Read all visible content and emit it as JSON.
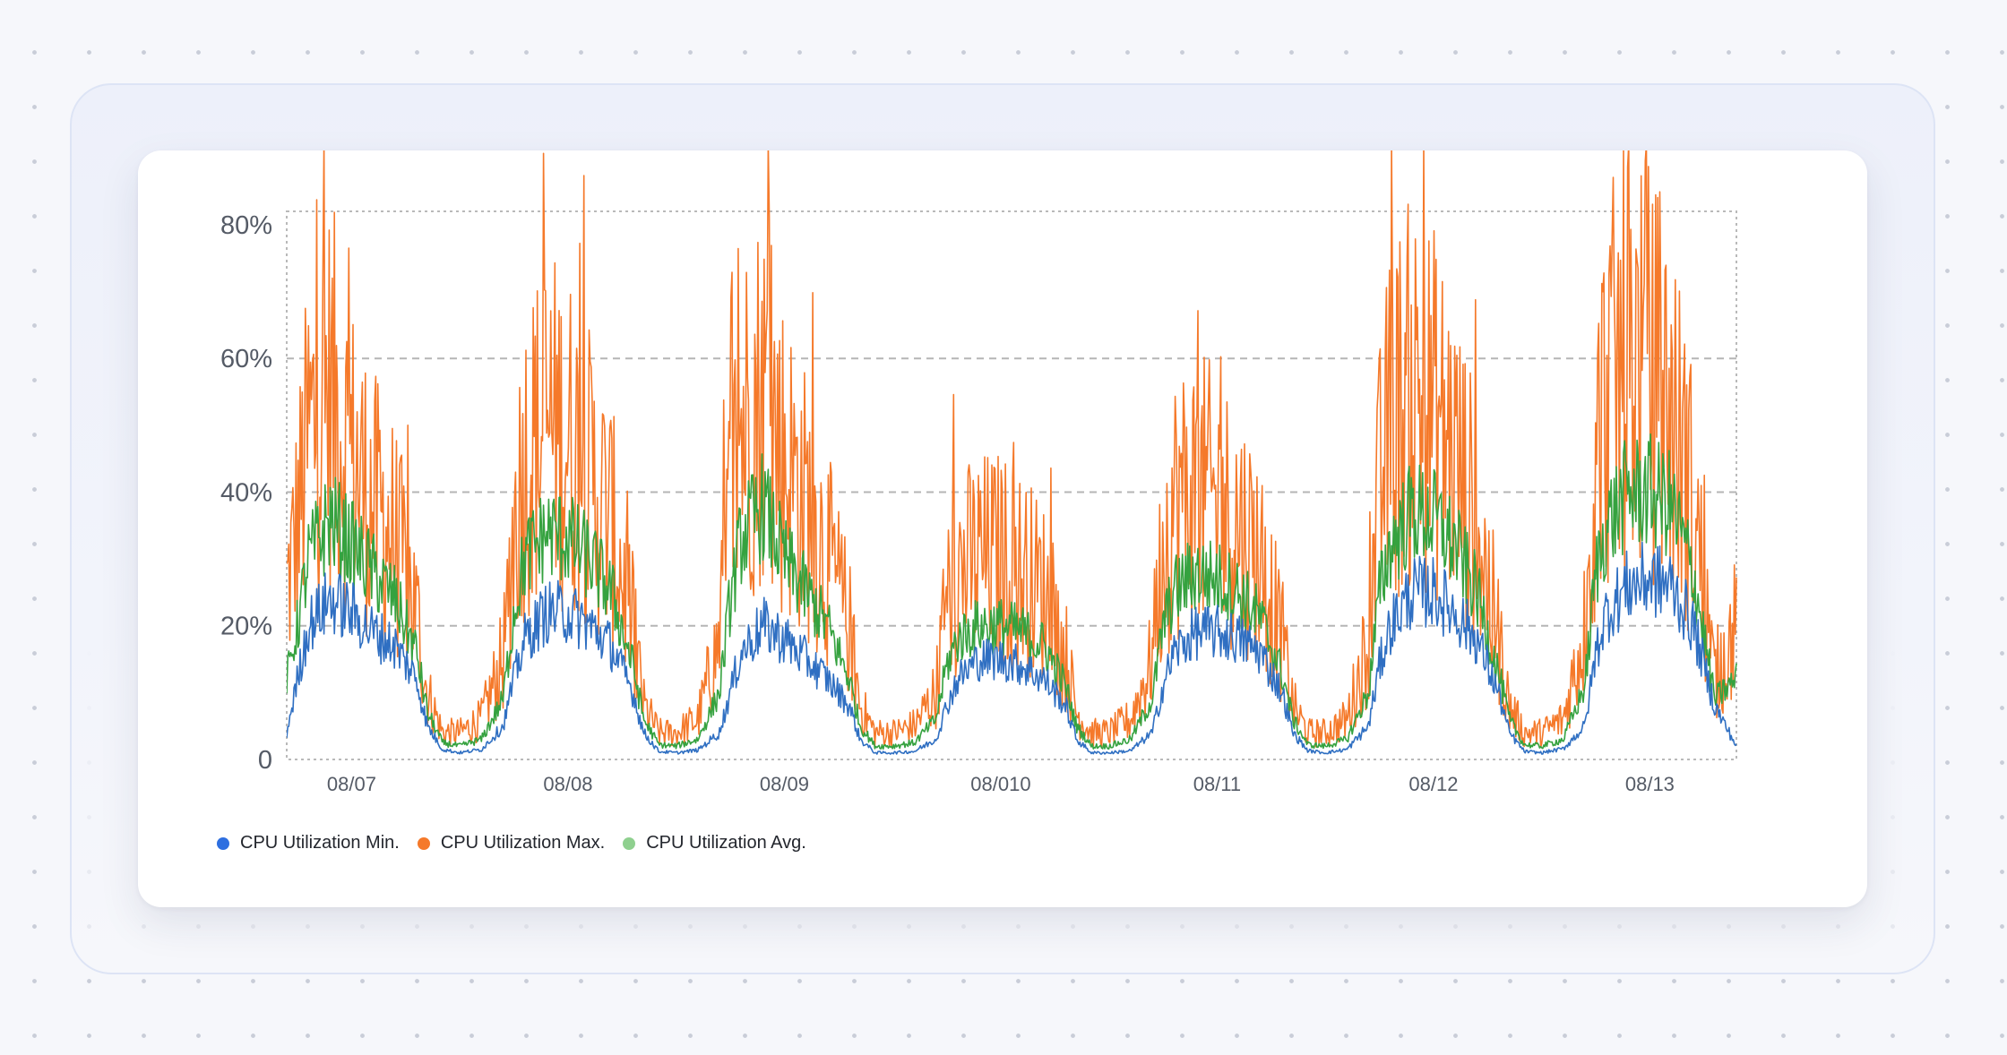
{
  "chart_data": {
    "type": "line",
    "title": "",
    "xlabel": "",
    "ylabel": "",
    "ylim": [
      0,
      82
    ],
    "y_ticks": [
      0,
      20,
      40,
      60,
      80
    ],
    "y_tick_labels": [
      "0",
      "20%",
      "40%",
      "60%",
      "80%"
    ],
    "x_range": [
      0,
      6.7
    ],
    "x_ticks": [
      0.3,
      1.3,
      2.3,
      3.3,
      4.3,
      5.3,
      6.3
    ],
    "x_tick_labels": [
      "08/07",
      "08/08",
      "08/09",
      "08/010",
      "08/11",
      "08/12",
      "08/13"
    ],
    "grid": true,
    "legend_position": "bottom-left",
    "series": [
      {
        "name": "CPU Utilization Min.",
        "color": "#2f6fc2",
        "x": [
          0,
          0.05,
          0.1,
          0.2,
          0.3,
          0.4,
          0.5,
          0.6,
          0.65,
          0.72,
          0.8,
          0.9,
          1.0,
          1.05,
          1.1,
          1.2,
          1.3,
          1.4,
          1.5,
          1.6,
          1.65,
          1.72,
          1.8,
          1.9,
          2.0,
          2.05,
          2.1,
          2.2,
          2.3,
          2.4,
          2.5,
          2.6,
          2.65,
          2.72,
          2.8,
          2.9,
          3.0,
          3.05,
          3.1,
          3.2,
          3.3,
          3.4,
          3.5,
          3.6,
          3.65,
          3.72,
          3.8,
          3.9,
          4.0,
          4.05,
          4.1,
          4.2,
          4.3,
          4.4,
          4.5,
          4.6,
          4.65,
          4.72,
          4.8,
          4.9,
          5.0,
          5.05,
          5.1,
          5.2,
          5.3,
          5.4,
          5.5,
          5.6,
          5.65,
          5.72,
          5.8,
          5.9,
          6.0,
          6.05,
          6.1,
          6.2,
          6.3,
          6.4,
          6.5,
          6.6,
          6.7
        ],
        "values": [
          4,
          12,
          20,
          24,
          22,
          19,
          17,
          12,
          5,
          1.5,
          1,
          1.5,
          5,
          12,
          18,
          22,
          22,
          20,
          17,
          10,
          4,
          1.2,
          1,
          1.4,
          4,
          10,
          16,
          20,
          18,
          15,
          12,
          8,
          3,
          1,
          1,
          1.2,
          3,
          8,
          12,
          15,
          15,
          14,
          12,
          8,
          3,
          1,
          1,
          1.3,
          4,
          11,
          16,
          19,
          19,
          18,
          16,
          10,
          4,
          1.3,
          1,
          1.5,
          5,
          14,
          20,
          25,
          25,
          22,
          18,
          10,
          4,
          1.2,
          1,
          1.6,
          5,
          16,
          22,
          26,
          27,
          26,
          20,
          8,
          2
        ]
      },
      {
        "name": "CPU Utilization Max.",
        "color": "#f5792a",
        "x": [
          0,
          0.05,
          0.1,
          0.2,
          0.3,
          0.4,
          0.5,
          0.6,
          0.65,
          0.72,
          0.8,
          0.9,
          1.0,
          1.05,
          1.1,
          1.2,
          1.3,
          1.4,
          1.5,
          1.6,
          1.65,
          1.72,
          1.8,
          1.9,
          2.0,
          2.05,
          2.1,
          2.2,
          2.3,
          2.4,
          2.5,
          2.6,
          2.65,
          2.72,
          2.8,
          2.9,
          3.0,
          3.05,
          3.1,
          3.2,
          3.3,
          3.4,
          3.5,
          3.6,
          3.65,
          3.72,
          3.8,
          3.9,
          4.0,
          4.05,
          4.1,
          4.2,
          4.3,
          4.4,
          4.5,
          4.6,
          4.65,
          4.72,
          4.8,
          4.9,
          5.0,
          5.05,
          5.1,
          5.2,
          5.3,
          5.4,
          5.5,
          5.6,
          5.65,
          5.72,
          5.8,
          5.9,
          6.0,
          6.05,
          6.1,
          6.2,
          6.3,
          6.4,
          6.5,
          6.6,
          6.7
        ],
        "values": [
          25,
          35,
          48,
          55,
          45,
          38,
          33,
          22,
          10,
          4,
          4,
          6,
          15,
          35,
          45,
          50,
          48,
          42,
          35,
          20,
          8,
          4,
          4,
          6,
          18,
          38,
          50,
          55,
          45,
          38,
          30,
          20,
          8,
          4,
          4,
          5,
          10,
          24,
          28,
          30,
          30,
          28,
          25,
          16,
          7,
          4,
          4,
          6,
          15,
          32,
          38,
          40,
          38,
          35,
          30,
          18,
          8,
          4,
          4,
          6,
          18,
          40,
          50,
          55,
          52,
          45,
          35,
          18,
          8,
          4,
          4,
          6,
          20,
          45,
          55,
          60,
          58,
          52,
          38,
          12,
          20
        ]
      },
      {
        "name": "CPU Utilization Avg.",
        "color": "#35a23f",
        "x": [
          0,
          0.05,
          0.1,
          0.2,
          0.3,
          0.4,
          0.5,
          0.6,
          0.65,
          0.72,
          0.8,
          0.9,
          1.0,
          1.05,
          1.1,
          1.2,
          1.3,
          1.4,
          1.5,
          1.6,
          1.65,
          1.72,
          1.8,
          1.9,
          2.0,
          2.05,
          2.1,
          2.2,
          2.3,
          2.4,
          2.5,
          2.6,
          2.65,
          2.72,
          2.8,
          2.9,
          3.0,
          3.05,
          3.1,
          3.2,
          3.3,
          3.4,
          3.5,
          3.6,
          3.65,
          3.72,
          3.8,
          3.9,
          4.0,
          4.05,
          4.1,
          4.2,
          4.3,
          4.4,
          4.5,
          4.6,
          4.65,
          4.72,
          4.8,
          4.9,
          5.0,
          5.05,
          5.1,
          5.2,
          5.3,
          5.4,
          5.5,
          5.6,
          5.65,
          5.72,
          5.8,
          5.9,
          6.0,
          6.05,
          6.1,
          6.2,
          6.3,
          6.4,
          6.5,
          6.6,
          6.7
        ],
        "values": [
          12,
          20,
          30,
          36,
          32,
          28,
          24,
          16,
          7,
          2.5,
          2,
          3,
          9,
          22,
          30,
          34,
          33,
          30,
          25,
          14,
          6,
          2.2,
          2,
          3,
          10,
          24,
          33,
          38,
          30,
          25,
          20,
          12,
          5,
          2,
          2,
          2.5,
          6,
          14,
          18,
          20,
          20,
          19,
          17,
          11,
          5,
          2,
          2,
          3,
          9,
          20,
          25,
          28,
          27,
          25,
          21,
          13,
          6,
          2.2,
          2,
          3,
          10,
          25,
          32,
          37,
          36,
          32,
          25,
          13,
          6,
          2.2,
          2,
          3,
          11,
          28,
          35,
          40,
          40,
          38,
          28,
          9,
          12
        ]
      }
    ]
  }
}
